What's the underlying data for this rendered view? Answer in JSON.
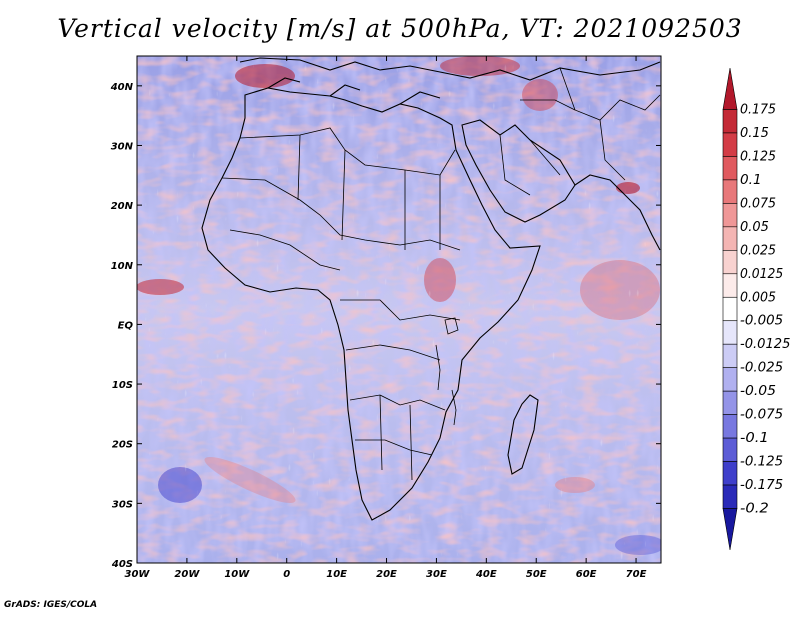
{
  "title": "Vertical velocity [m/s] at 500hPa, VT: 2021092503",
  "credit": "GrADS: IGES/COLA",
  "map": {
    "region": "Africa",
    "lon_range": [
      -30,
      75
    ],
    "lat_range": [
      -40,
      45
    ],
    "lon_ticks": [
      {
        "value": -30,
        "label": "30W"
      },
      {
        "value": -20,
        "label": "20W"
      },
      {
        "value": -10,
        "label": "10W"
      },
      {
        "value": 0,
        "label": "0"
      },
      {
        "value": 10,
        "label": "10E"
      },
      {
        "value": 20,
        "label": "20E"
      },
      {
        "value": 30,
        "label": "30E"
      },
      {
        "value": 40,
        "label": "40E"
      },
      {
        "value": 50,
        "label": "50E"
      },
      {
        "value": 60,
        "label": "60E"
      },
      {
        "value": 70,
        "label": "70E"
      }
    ],
    "lat_ticks": [
      {
        "value": 40,
        "label": "40N"
      },
      {
        "value": 30,
        "label": "30N"
      },
      {
        "value": 20,
        "label": "20N"
      },
      {
        "value": 10,
        "label": "10N"
      },
      {
        "value": 0,
        "label": "EQ"
      },
      {
        "value": -10,
        "label": "10S"
      },
      {
        "value": -20,
        "label": "20S"
      },
      {
        "value": -30,
        "label": "30S"
      },
      {
        "value": -40,
        "label": "40S"
      }
    ]
  },
  "colorbar": {
    "labels": [
      "0.175",
      "0.15",
      "0.125",
      "0.1",
      "0.075",
      "0.05",
      "0.025",
      "0.0125",
      "0.005",
      "-0.005",
      "-0.0125",
      "-0.025",
      "-0.05",
      "-0.075",
      "-0.1",
      "-0.125",
      "-0.175",
      "-0.2"
    ],
    "colors": [
      "#b2182b",
      "#c42a36",
      "#d33c46",
      "#e05a5f",
      "#e8787a",
      "#ef9797",
      "#f4b5b3",
      "#f8d2d0",
      "#fcebea",
      "#ffffff",
      "#e6e6fb",
      "#ccccf5",
      "#b0b0ef",
      "#9494e8",
      "#7878e0",
      "#5c5cd6",
      "#3f3fcb",
      "#2a2ab8",
      "#18189e"
    ]
  }
}
